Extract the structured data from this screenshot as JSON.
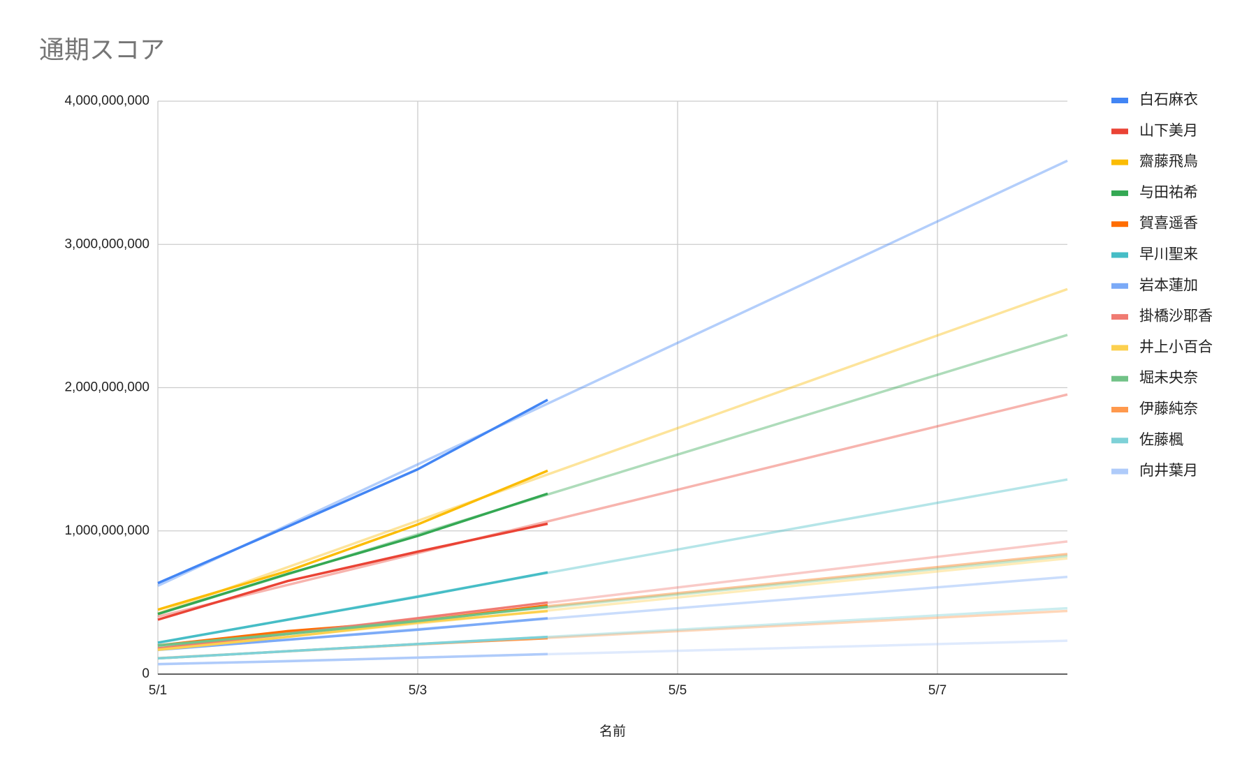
{
  "chart_data": {
    "type": "line",
    "title": "通期スコア",
    "x_label": "名前",
    "x": [
      "5/1",
      "5/2",
      "5/3",
      "5/4"
    ],
    "xlim": [
      "5/1",
      "5/8"
    ],
    "xticks": [
      "5/1",
      "5/3",
      "5/5",
      "5/7"
    ],
    "ylim": [
      0,
      4000000000
    ],
    "yticks": [
      0,
      {
        "value": 1000000000,
        "label": "1,000,000,000"
      },
      {
        "value": 2000000000,
        "label": "2,000,000,000"
      },
      {
        "value": 3000000000,
        "label": "3,000,000,000"
      },
      {
        "value": 4000000000,
        "label": "4,000,000,000"
      }
    ],
    "grid": true,
    "trendline": "linear",
    "legend": "right",
    "series": [
      {
        "name": "白石麻衣",
        "color": "#4285f4",
        "values": [
          635000000,
          1030000000,
          1430000000,
          1915000000
        ]
      },
      {
        "name": "山下美月",
        "color": "#ea4335",
        "values": [
          380000000,
          650000000,
          855000000,
          1050000000
        ]
      },
      {
        "name": "齋藤飛鳥",
        "color": "#fbbc04",
        "values": [
          450000000,
          720000000,
          1045000000,
          1420000000
        ]
      },
      {
        "name": "与田祐希",
        "color": "#34a853",
        "values": [
          420000000,
          700000000,
          965000000,
          1260000000
        ]
      },
      {
        "name": "賀喜遥香",
        "color": "#ff6d01",
        "values": [
          200000000,
          300000000,
          370000000,
          480000000
        ]
      },
      {
        "name": "早川聖来",
        "color": "#46bdc6",
        "values": [
          220000000,
          380000000,
          540000000,
          710000000
        ]
      },
      {
        "name": "岩本蓮加",
        "color": "#7baaf7",
        "values": [
          170000000,
          240000000,
          310000000,
          390000000
        ]
      },
      {
        "name": "掛橋沙耶香",
        "color": "#f07b72",
        "values": [
          180000000,
          280000000,
          390000000,
          500000000
        ]
      },
      {
        "name": "井上小百合",
        "color": "#fcd04f",
        "values": [
          170000000,
          260000000,
          360000000,
          440000000
        ]
      },
      {
        "name": "堀未央奈",
        "color": "#71c287",
        "values": [
          200000000,
          280000000,
          370000000,
          470000000
        ]
      },
      {
        "name": "伊藤純奈",
        "color": "#ff994d",
        "values": [
          110000000,
          160000000,
          210000000,
          250000000
        ]
      },
      {
        "name": "佐藤楓",
        "color": "#7ed1d7",
        "values": [
          110000000,
          160000000,
          210000000,
          260000000
        ]
      },
      {
        "name": "向井葉月",
        "color": "#afcbfa",
        "values": [
          70000000,
          90000000,
          115000000,
          140000000
        ]
      }
    ]
  }
}
